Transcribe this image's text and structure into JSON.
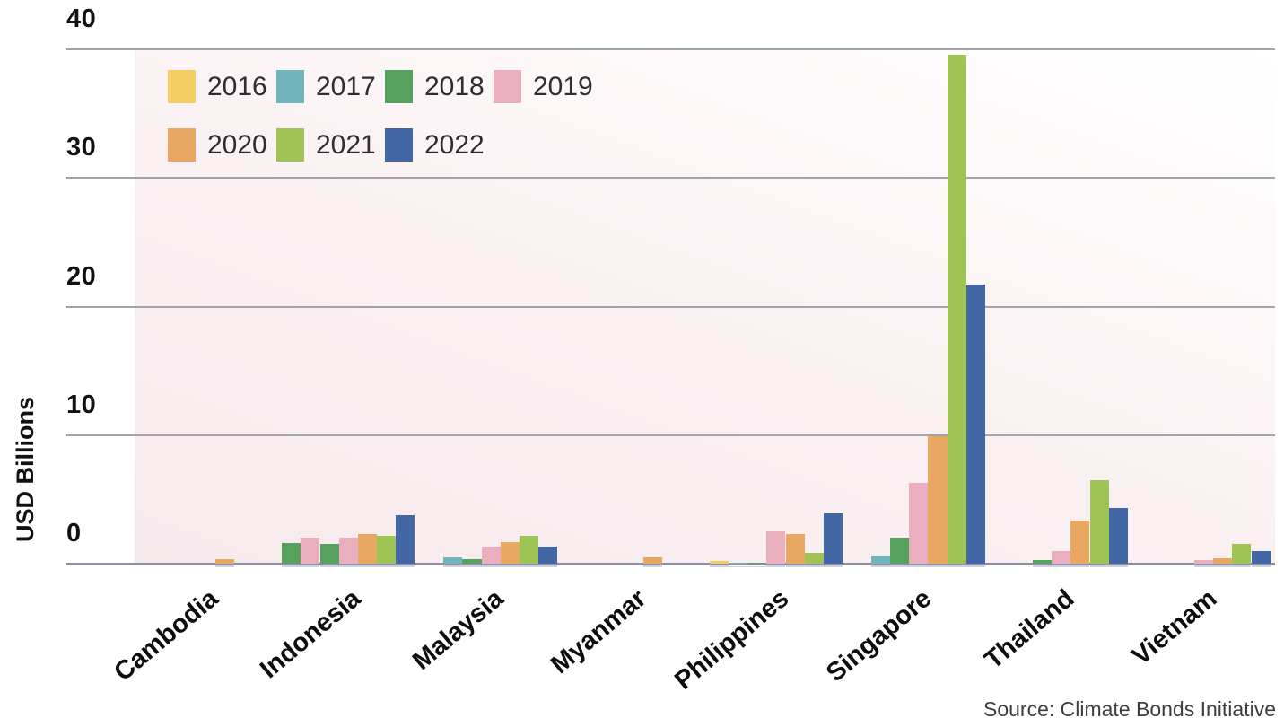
{
  "chart_data": {
    "type": "bar",
    "title": "",
    "ylabel": "USD Billions",
    "ylim": [
      0,
      40
    ],
    "yticks": [
      40,
      30,
      20,
      10,
      0
    ],
    "grid": true,
    "legend_position": "top-left",
    "legend_rows": [
      [
        "2016",
        "2017",
        "2018",
        "2019"
      ],
      [
        "2020",
        "2021",
        "2022"
      ]
    ],
    "categories": [
      "Cambodia",
      "Indonesia",
      "Malaysia",
      "Myanmar",
      "Philippines",
      "Singapore",
      "Thailand",
      "Vietnam"
    ],
    "series": [
      {
        "name": "2016",
        "color": "#F4CE63",
        "values": [
          0,
          1.6,
          0,
          0,
          0.2,
          0,
          0,
          0
        ]
      },
      {
        "name": "2017",
        "color": "#73B3BC",
        "values": [
          0,
          2.0,
          0.5,
          0,
          0.1,
          0.6,
          0,
          0
        ]
      },
      {
        "name": "2018",
        "color": "#57A15F",
        "values": [
          0,
          1.55,
          0.35,
          0,
          0.1,
          2.0,
          0.3,
          0
        ]
      },
      {
        "name": "2019",
        "color": "#EAAFBE",
        "values": [
          0,
          2.05,
          1.3,
          0,
          2.5,
          6.3,
          0.95,
          0.3
        ]
      },
      {
        "name": "2020",
        "color": "#E8A863",
        "values": [
          0.35,
          2.3,
          1.65,
          0.5,
          2.3,
          9.9,
          3.35,
          0.45
        ]
      },
      {
        "name": "2021",
        "color": "#9DC454",
        "values": [
          0,
          2.2,
          2.15,
          0,
          0.85,
          39.6,
          6.5,
          1.55
        ]
      },
      {
        "name": "2022",
        "color": "#4367A5",
        "values": [
          0,
          3.75,
          1.35,
          0,
          3.9,
          21.7,
          4.3,
          0.95
        ]
      }
    ],
    "bar_color_overrides": {
      "Indonesia": {
        "2016": "#57A15F",
        "2017": "#EAAFBE"
      }
    },
    "source": "Source: Climate Bonds Initiative"
  },
  "colors": {
    "gridline": "#a3a3ab",
    "baseline": "#8f8f9b",
    "tick_text": "#111111",
    "axis_label_text": "#111111",
    "legend_text": "#2e2e2e",
    "source_text": "#3e3e3e",
    "plot_bg_bottom_left": "#f7eaed",
    "plot_bg_top_right": "#ffffff"
  }
}
